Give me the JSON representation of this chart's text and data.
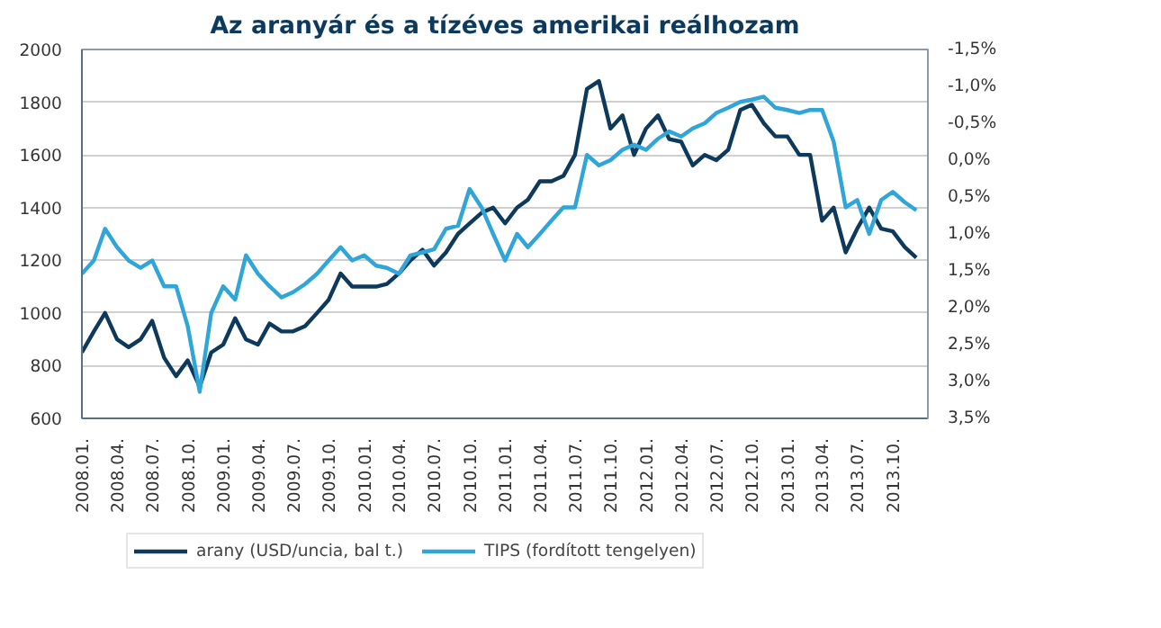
{
  "chart_data": {
    "type": "line",
    "title": "Az aranyár és a tízéves amerikai reálhozam",
    "x": [
      "2008-01",
      "2008-02",
      "2008-03",
      "2008-04",
      "2008-05",
      "2008-06",
      "2008-07",
      "2008-08",
      "2008-09",
      "2008-10",
      "2008-11",
      "2008-12",
      "2009-01",
      "2009-02",
      "2009-03",
      "2009-04",
      "2009-05",
      "2009-06",
      "2009-07",
      "2009-08",
      "2009-09",
      "2009-10",
      "2009-11",
      "2009-12",
      "2010-01",
      "2010-02",
      "2010-03",
      "2010-04",
      "2010-05",
      "2010-06",
      "2010-07",
      "2010-08",
      "2010-09",
      "2010-10",
      "2010-11",
      "2010-12",
      "2011-01",
      "2011-02",
      "2011-03",
      "2011-04",
      "2011-05",
      "2011-06",
      "2011-07",
      "2011-08",
      "2011-09",
      "2011-10",
      "2011-11",
      "2011-12",
      "2012-01",
      "2012-02",
      "2012-03",
      "2012-04",
      "2012-05",
      "2012-06",
      "2012-07",
      "2012-08",
      "2012-09",
      "2012-10",
      "2012-11",
      "2012-12",
      "2013-01",
      "2013-02",
      "2013-03",
      "2013-04",
      "2013-05",
      "2013-06",
      "2013-07",
      "2013-08",
      "2013-09",
      "2013-10",
      "2013-11",
      "2013-12"
    ],
    "series": [
      {
        "name": "arany (USD/uncia, bal t.)",
        "color": "#0d3a5c",
        "values": [
          850,
          930,
          1000,
          900,
          870,
          900,
          970,
          830,
          760,
          820,
          720,
          850,
          880,
          980,
          900,
          880,
          960,
          930,
          930,
          950,
          1000,
          1050,
          1150,
          1100,
          1100,
          1100,
          1110,
          1150,
          1200,
          1240,
          1180,
          1230,
          1300,
          1340,
          1380,
          1400,
          1340,
          1400,
          1430,
          1500,
          1500,
          1520,
          1600,
          1850,
          1880,
          1700,
          1750,
          1600,
          1700,
          1750,
          1660,
          1650,
          1560,
          1600,
          1580,
          1620,
          1770,
          1790,
          1720,
          1670,
          1670,
          1600,
          1600,
          1350,
          1400,
          1230,
          1320,
          1400,
          1320,
          1310,
          1250,
          1210
        ]
      },
      {
        "name": "TIPS (fordított tengelyen)",
        "color": "#2fa5d8",
        "axis": "y2",
        "values": [
          1.54,
          1.36,
          0.93,
          1.18,
          1.36,
          1.46,
          1.36,
          1.71,
          1.71,
          2.25,
          3.14,
          2.07,
          1.71,
          1.89,
          1.29,
          1.54,
          1.71,
          1.86,
          1.79,
          1.68,
          1.54,
          1.36,
          1.18,
          1.36,
          1.29,
          1.43,
          1.46,
          1.54,
          1.29,
          1.25,
          1.21,
          0.93,
          0.89,
          0.39,
          0.64,
          1.0,
          1.36,
          1.0,
          1.18,
          1.0,
          0.82,
          0.64,
          0.64,
          -0.07,
          0.07,
          0.0,
          -0.14,
          -0.21,
          -0.14,
          -0.29,
          -0.39,
          -0.32,
          -0.43,
          -0.5,
          -0.64,
          -0.71,
          -0.79,
          -0.82,
          -0.86,
          -0.71,
          -0.68,
          -0.64,
          -0.68,
          -0.68,
          -0.25,
          0.64,
          0.54,
          1.0,
          0.54,
          0.43,
          0.57,
          0.68
        ]
      }
    ],
    "xlim": [
      "2008-01-01",
      "2013-12-31"
    ],
    "xticks": [
      {
        "value": "2008-01",
        "label": "2008.01."
      },
      {
        "value": "2008-04",
        "label": "2008.04."
      },
      {
        "value": "2008-07",
        "label": "2008.07."
      },
      {
        "value": "2008-10",
        "label": "2008.10."
      },
      {
        "value": "2009-01",
        "label": "2009.01."
      },
      {
        "value": "2009-04",
        "label": "2009.04."
      },
      {
        "value": "2009-07",
        "label": "2009.07."
      },
      {
        "value": "2009-10",
        "label": "2009.10."
      },
      {
        "value": "2010-01",
        "label": "2010.01."
      },
      {
        "value": "2010-04",
        "label": "2010.04."
      },
      {
        "value": "2010-07",
        "label": "2010.07."
      },
      {
        "value": "2010-10",
        "label": "2010.10."
      },
      {
        "value": "2011-01",
        "label": "2011.01."
      },
      {
        "value": "2011-04",
        "label": "2011.04."
      },
      {
        "value": "2011-07",
        "label": "2011.07."
      },
      {
        "value": "2011-10",
        "label": "2011.10."
      },
      {
        "value": "2012-01",
        "label": "2012.01."
      },
      {
        "value": "2012-04",
        "label": "2012.04."
      },
      {
        "value": "2012-07",
        "label": "2012.07."
      },
      {
        "value": "2012-10",
        "label": "2012.10."
      },
      {
        "value": "2013-01",
        "label": "2013.01."
      },
      {
        "value": "2013-04",
        "label": "2013.04."
      },
      {
        "value": "2013-07",
        "label": "2013.07."
      },
      {
        "value": "2013-10",
        "label": "2013.10."
      }
    ],
    "ylim": [
      600,
      2000
    ],
    "yticks": [
      600,
      800,
      1000,
      1200,
      1400,
      1600,
      1800,
      2000
    ],
    "y2lim": [
      3.5,
      -1.5
    ],
    "y2ticks": [
      {
        "value": -1.5,
        "label": "-1,5%"
      },
      {
        "value": -1.0,
        "label": "-1,0%"
      },
      {
        "value": -0.5,
        "label": "-0,5%"
      },
      {
        "value": 0,
        "label": "0,0%"
      },
      {
        "value": 0.5,
        "label": "0,5%"
      },
      {
        "value": 1.0,
        "label": "1,0%"
      },
      {
        "value": 1.5,
        "label": "1,5%"
      },
      {
        "value": 2.0,
        "label": "2,0%"
      },
      {
        "value": 2.5,
        "label": "2,5%"
      },
      {
        "value": 3.0,
        "label": "3,0%"
      },
      {
        "value": 3.5,
        "label": "3,5%"
      }
    ],
    "grid": "y",
    "legend": "bottom",
    "line_style": "solid"
  }
}
